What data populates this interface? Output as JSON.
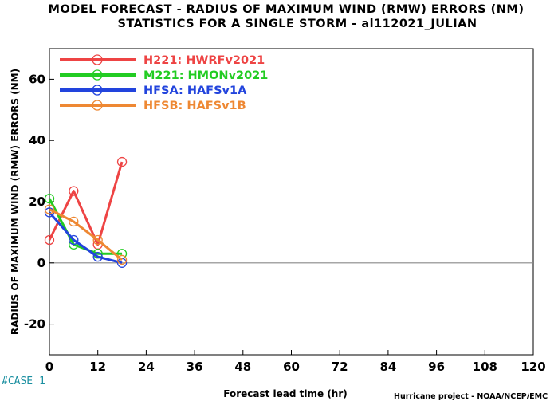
{
  "title_line1": "MODEL FORECAST - RADIUS OF MAXIMUM WIND (RMW) ERRORS (NM)",
  "title_line2": "STATISTICS FOR A SINGLE STORM - al112021_JULIAN",
  "case_label": "#CASE  1",
  "credit": "Hurricane project - NOAA/NCEP/EMC",
  "colors": {
    "H221": "#ee4444",
    "M221": "#22cc22",
    "HFSA": "#2244dd",
    "HFSB": "#ee8833",
    "zero_line": "#888888"
  },
  "chart_data": {
    "type": "line",
    "title": "MODEL FORECAST - RADIUS OF MAXIMUM WIND (RMW) ERRORS (NM)",
    "subtitle": "STATISTICS FOR A SINGLE STORM - al112021_JULIAN",
    "xlabel": "Forecast lead time (hr)",
    "ylabel": "RADIUS OF MAXIMUM WIND (RMW) ERRORS (NM)",
    "xlim": [
      0,
      120
    ],
    "ylim": [
      -30,
      70
    ],
    "xticks": [
      0,
      12,
      24,
      36,
      48,
      60,
      72,
      84,
      96,
      108,
      120
    ],
    "yticks": [
      -20,
      0,
      20,
      40,
      60
    ],
    "x": [
      0,
      6,
      12,
      18
    ],
    "legend_position": "top-left",
    "series": [
      {
        "key": "H221",
        "name": "H221: HWRFv2021",
        "color": "#ee4444",
        "values": [
          7.5,
          23.5,
          6.0,
          33.0
        ]
      },
      {
        "key": "M221",
        "name": "M221: HMONv2021",
        "color": "#22cc22",
        "values": [
          21.0,
          6.0,
          3.0,
          3.0
        ]
      },
      {
        "key": "HFSA",
        "name": "HFSA: HAFSv1A",
        "color": "#2244dd",
        "values": [
          16.5,
          7.5,
          2.0,
          0.0
        ]
      },
      {
        "key": "HFSB",
        "name": "HFSB: HAFSv1B",
        "color": "#ee8833",
        "values": [
          17.5,
          13.5,
          7.5,
          1.0
        ]
      }
    ]
  }
}
